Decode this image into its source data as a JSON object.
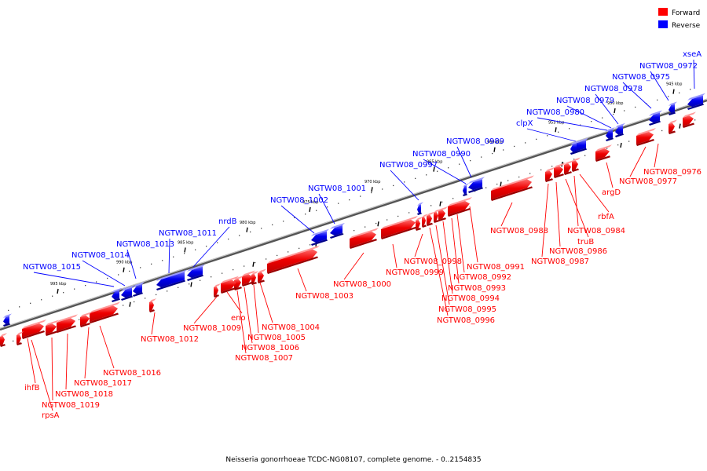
{
  "title": "Neisseria gonorrhoeae TCDC-NG08107, complete genome. - 0..2154835",
  "colors": {
    "forward": "#ff0000",
    "reverse": "#0000ff",
    "backbone": "#808080"
  },
  "legend": [
    {
      "label": "Forward",
      "strand": "forward"
    },
    {
      "label": "Reverse",
      "strand": "reverse"
    }
  ],
  "ticks": [
    "995 kbp",
    "990 kbp",
    "985 kbp",
    "980 kbp",
    "975 kbp",
    "970 kbp",
    "965 kbp",
    "960 kbp",
    "955 kbp",
    "950 kbp",
    "945 kbp"
  ],
  "genes": [
    {
      "name": "xseA",
      "strand": "reverse"
    },
    {
      "name": "NGTW08_0972",
      "strand": "reverse"
    },
    {
      "name": "NGTW08_0975",
      "strand": "reverse"
    },
    {
      "name": "NGTW08_0978",
      "strand": "reverse"
    },
    {
      "name": "NGTW08_0979",
      "strand": "reverse"
    },
    {
      "name": "NGTW08_0980",
      "strand": "reverse"
    },
    {
      "name": "clpX",
      "strand": "reverse"
    },
    {
      "name": "NGTW08_0989",
      "strand": "reverse"
    },
    {
      "name": "NGTW08_0990",
      "strand": "reverse"
    },
    {
      "name": "NGTW08_0997",
      "strand": "reverse"
    },
    {
      "name": "NGTW08_1001",
      "strand": "reverse"
    },
    {
      "name": "NGTW08_1002",
      "strand": "reverse"
    },
    {
      "name": "nrdB",
      "strand": "reverse"
    },
    {
      "name": "NGTW08_1011",
      "strand": "reverse"
    },
    {
      "name": "NGTW08_1013",
      "strand": "reverse"
    },
    {
      "name": "NGTW08_1014",
      "strand": "reverse"
    },
    {
      "name": "NGTW08_1015",
      "strand": "reverse"
    },
    {
      "name": "NGTW08_0976",
      "strand": "forward"
    },
    {
      "name": "NGTW08_0977",
      "strand": "forward"
    },
    {
      "name": "argD",
      "strand": "forward"
    },
    {
      "name": "rbfA",
      "strand": "forward"
    },
    {
      "name": "NGTW08_0984",
      "strand": "forward"
    },
    {
      "name": "truB",
      "strand": "forward"
    },
    {
      "name": "NGTW08_0986",
      "strand": "forward"
    },
    {
      "name": "NGTW08_0987",
      "strand": "forward"
    },
    {
      "name": "NGTW08_0988",
      "strand": "forward"
    },
    {
      "name": "NGTW08_0991",
      "strand": "forward"
    },
    {
      "name": "NGTW08_0992",
      "strand": "forward"
    },
    {
      "name": "NGTW08_0993",
      "strand": "forward"
    },
    {
      "name": "NGTW08_0994",
      "strand": "forward"
    },
    {
      "name": "NGTW08_0995",
      "strand": "forward"
    },
    {
      "name": "NGTW08_0996",
      "strand": "forward"
    },
    {
      "name": "NGTW08_0998",
      "strand": "forward"
    },
    {
      "name": "NGTW08_0999",
      "strand": "forward"
    },
    {
      "name": "NGTW08_1000",
      "strand": "forward"
    },
    {
      "name": "NGTW08_1003",
      "strand": "forward"
    },
    {
      "name": "NGTW08_1004",
      "strand": "forward"
    },
    {
      "name": "NGTW08_1005",
      "strand": "forward"
    },
    {
      "name": "NGTW08_1006",
      "strand": "forward"
    },
    {
      "name": "NGTW08_1007",
      "strand": "forward"
    },
    {
      "name": "eno",
      "strand": "forward"
    },
    {
      "name": "NGTW08_1009",
      "strand": "forward"
    },
    {
      "name": "NGTW08_1012",
      "strand": "forward"
    },
    {
      "name": "NGTW08_1016",
      "strand": "forward"
    },
    {
      "name": "NGTW08_1017",
      "strand": "forward"
    },
    {
      "name": "NGTW08_1018",
      "strand": "forward"
    },
    {
      "name": "NGTW08_1019",
      "strand": "forward"
    },
    {
      "name": "ihfB",
      "strand": "forward"
    },
    {
      "name": "rpsA",
      "strand": "forward"
    }
  ]
}
